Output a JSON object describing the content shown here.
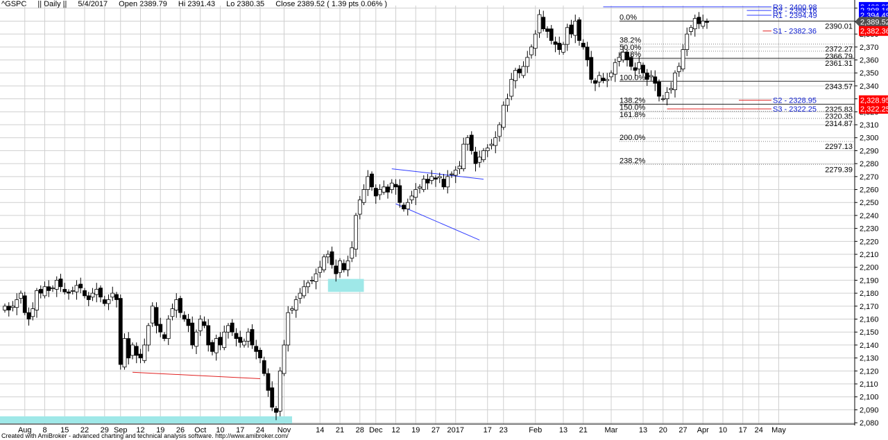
{
  "header": {
    "symbol": "^GSPC",
    "interval": "|| Daily ||",
    "date": "5/4/2017",
    "open": "Open 2389.79",
    "hi": "Hi 2391.43",
    "lo": "Lo 2380.35",
    "close": "Close 2389.52 ( 1.39 pts 0.06% )"
  },
  "footer": "Created with AmiBroker - advanced charting and technical analysis software. http://www.amibroker.com/",
  "colors": {
    "grid": "#cfcfcf",
    "up_fill": "#ffffff",
    "down_fill": "#000000",
    "candle_stroke": "#000000",
    "zone": "#9fe8e8",
    "pivot_line": "#2f3cff",
    "support_line": "#e02020",
    "fib_line": "#808080",
    "badge_blue": "#0000ff",
    "badge_red": "#ff0000",
    "badge_grey": "#505050"
  },
  "chart_data": {
    "type": "candlestick",
    "ylim": [
      2079,
      2402
    ],
    "yticks": [
      "2,080",
      "2,090",
      "2,100",
      "2,110",
      "2,120",
      "2,130",
      "2,140",
      "2,150",
      "2,160",
      "2,170",
      "2,180",
      "2,190",
      "2,200",
      "2,210",
      "2,220",
      "2,230",
      "2,240",
      "2,250",
      "2,260",
      "2,270",
      "2,280",
      "2,290",
      "2,300",
      "2,310",
      "2,320",
      "2,330",
      "2,340",
      "2,350",
      "2,360",
      "2,370",
      "2,380",
      "2,390",
      "2,400"
    ],
    "xticks": [
      {
        "label": "Aug",
        "bar": 5
      },
      {
        "label": "8",
        "bar": 10
      },
      {
        "label": "15",
        "bar": 15
      },
      {
        "label": "22",
        "bar": 20
      },
      {
        "label": "29",
        "bar": 25
      },
      {
        "label": "Sep",
        "bar": 29
      },
      {
        "label": "12",
        "bar": 34
      },
      {
        "label": "19",
        "bar": 39
      },
      {
        "label": "26",
        "bar": 44
      },
      {
        "label": "Oct",
        "bar": 49
      },
      {
        "label": "10",
        "bar": 54
      },
      {
        "label": "17",
        "bar": 59
      },
      {
        "label": "24",
        "bar": 64
      },
      {
        "label": "Nov",
        "bar": 70
      },
      {
        "label": "14",
        "bar": 79
      },
      {
        "label": "21",
        "bar": 84
      },
      {
        "label": "28",
        "bar": 89
      },
      {
        "label": "Dec",
        "bar": 93
      },
      {
        "label": "12",
        "bar": 98
      },
      {
        "label": "19",
        "bar": 103
      },
      {
        "label": "27",
        "bar": 108
      },
      {
        "label": "2017",
        "bar": 113
      },
      {
        "label": "17",
        "bar": 121
      },
      {
        "label": "23",
        "bar": 125
      },
      {
        "label": "Feb",
        "bar": 133
      },
      {
        "label": "13",
        "bar": 140
      },
      {
        "label": "21",
        "bar": 145
      },
      {
        "label": "Mar",
        "bar": 152
      },
      {
        "label": "13",
        "bar": 160
      },
      {
        "label": "20",
        "bar": 165
      },
      {
        "label": "27",
        "bar": 170
      },
      {
        "label": "Apr",
        "bar": 175
      },
      {
        "label": "10",
        "bar": 180
      },
      {
        "label": "17",
        "bar": 185
      },
      {
        "label": "24",
        "bar": 189
      },
      {
        "label": "May",
        "bar": 194
      }
    ],
    "closes": [
      2170,
      2167,
      2170,
      2175,
      2180,
      2165,
      2160,
      2168,
      2182,
      2180,
      2185,
      2182,
      2184,
      2190,
      2185,
      2181,
      2180,
      2182,
      2186,
      2184,
      2178,
      2175,
      2180,
      2183,
      2177,
      2172,
      2175,
      2180,
      2175,
      2125,
      2145,
      2130,
      2140,
      2132,
      2130,
      2140,
      2155,
      2170,
      2155,
      2150,
      2145,
      2160,
      2168,
      2175,
      2165,
      2160,
      2155,
      2140,
      2150,
      2160,
      2155,
      2140,
      2135,
      2145,
      2140,
      2150,
      2155,
      2150,
      2145,
      2142,
      2143,
      2150,
      2140,
      2135,
      2130,
      2118,
      2105,
      2092,
      2088,
      2120,
      2140,
      2165,
      2168,
      2175,
      2180,
      2185,
      2188,
      2190,
      2195,
      2200,
      2208,
      2210,
      2202,
      2195,
      2205,
      2198,
      2205,
      2215,
      2240,
      2252,
      2260,
      2270,
      2262,
      2255,
      2260,
      2262,
      2258,
      2265,
      2262,
      2250,
      2245,
      2250,
      2255,
      2260,
      2262,
      2268,
      2265,
      2270,
      2268,
      2270,
      2262,
      2270,
      2272,
      2275,
      2278,
      2295,
      2300,
      2290,
      2280,
      2285,
      2290,
      2292,
      2295,
      2300,
      2310,
      2325,
      2330,
      2345,
      2352,
      2350,
      2355,
      2362,
      2370,
      2380,
      2395,
      2384,
      2382,
      2375,
      2372,
      2368,
      2372,
      2385,
      2380,
      2390,
      2375,
      2370,
      2360,
      2345,
      2342,
      2348,
      2344,
      2345,
      2350,
      2358,
      2362,
      2366,
      2360,
      2355,
      2352,
      2358,
      2350,
      2345,
      2348,
      2342,
      2332,
      2330,
      2335,
      2338,
      2350,
      2355,
      2368,
      2380,
      2385,
      2392,
      2388,
      2390,
      2389
    ]
  },
  "indicators": {
    "pivots": [
      {
        "label": "R3 - 2400.98",
        "value": 2400.98
      },
      {
        "label": "R2 - 2398.16",
        "value": 2398.16
      },
      {
        "label": "R1 - 2394.49",
        "value": 2394.49
      },
      {
        "label": "S1 - 2382.36",
        "value": 2382.36
      },
      {
        "label": "S2 - 2328.95",
        "value": 2328.95
      },
      {
        "label": "S3 - 2322.25",
        "value": 2322.25
      }
    ],
    "fibs": [
      {
        "pct": "0.0%",
        "value": "2390.01",
        "level": 2390.01
      },
      {
        "pct": "38.2%",
        "value": "2372.27",
        "level": 2372.27
      },
      {
        "pct": "50.0%",
        "value": "2366.79",
        "level": 2366.79
      },
      {
        "pct": "61.8%",
        "value": "2361.31",
        "level": 2361.31
      },
      {
        "pct": "100.0%",
        "value": "2343.57",
        "level": 2343.57
      },
      {
        "pct": "138.2%",
        "value": "2325.83",
        "level": 2325.83
      },
      {
        "pct": "150.0%",
        "value": "2320.35",
        "level": 2320.35
      },
      {
        "pct": "161.8%",
        "value": "2314.87",
        "level": 2314.87
      },
      {
        "pct": "200.0%",
        "value": "2297.13",
        "level": 2297.13
      },
      {
        "pct": "238.2%",
        "value": "2279.39",
        "level": 2279.39
      }
    ],
    "badges": [
      {
        "label": "2,400.98",
        "value": 2400.98,
        "color": "badge_blue"
      },
      {
        "label": "2,398.16",
        "value": 2398.16,
        "color": "badge_blue"
      },
      {
        "label": "2,394.49",
        "value": 2394.49,
        "color": "badge_blue"
      },
      {
        "label": "2,389.52",
        "value": 2389.52,
        "color": "badge_grey"
      },
      {
        "label": "2,382.36",
        "value": 2382.36,
        "color": "badge_red"
      },
      {
        "label": "2,328.95",
        "value": 2328.95,
        "color": "badge_red"
      },
      {
        "label": "2,322.25",
        "value": 2322.25,
        "color": "badge_red"
      }
    ]
  }
}
